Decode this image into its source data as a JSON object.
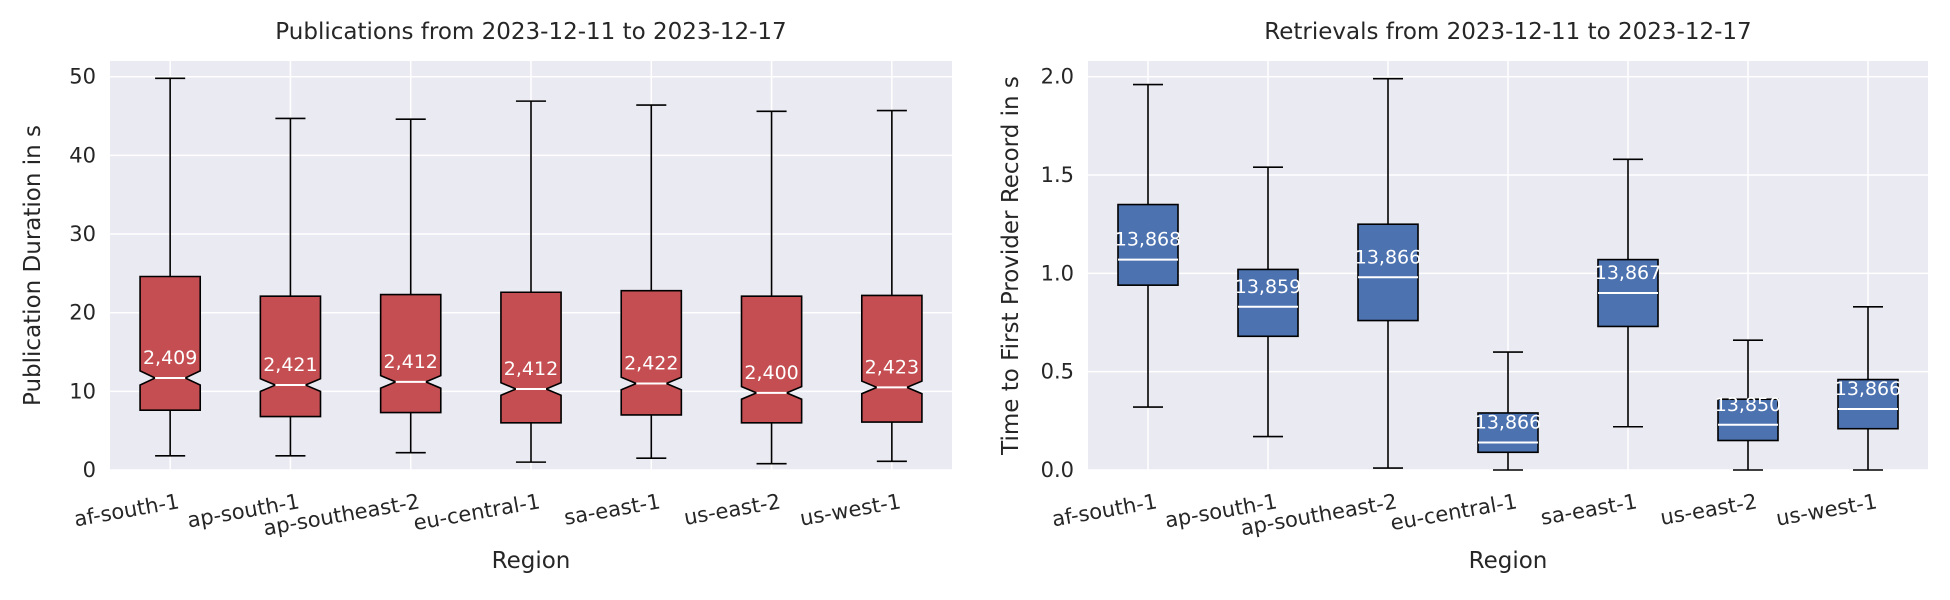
{
  "chart_data": [
    {
      "type": "box",
      "title": "Publications from 2023-12-11 to 2023-12-17",
      "xlabel": "Region",
      "ylabel": "Publication Duration in s",
      "ylim": [
        0,
        52
      ],
      "yticks": [
        0,
        10,
        20,
        30,
        40,
        50
      ],
      "notched": true,
      "grid": true,
      "box_color": "#c44e52",
      "categories": [
        "af-south-1",
        "ap-south-1",
        "ap-southeast-2",
        "eu-central-1",
        "sa-east-1",
        "us-east-2",
        "us-west-1"
      ],
      "boxes": [
        {
          "whislo": 1.8,
          "q1": 7.6,
          "med": 11.7,
          "q3": 24.6,
          "whishi": 49.8,
          "cilo": 10.8,
          "cihi": 12.6,
          "count": "2,409"
        },
        {
          "whislo": 1.8,
          "q1": 6.8,
          "med": 10.8,
          "q3": 22.1,
          "whishi": 44.7,
          "cilo": 10.0,
          "cihi": 11.6,
          "count": "2,421"
        },
        {
          "whislo": 2.2,
          "q1": 7.3,
          "med": 11.2,
          "q3": 22.3,
          "whishi": 44.6,
          "cilo": 10.4,
          "cihi": 12.0,
          "count": "2,412"
        },
        {
          "whislo": 1.0,
          "q1": 6.0,
          "med": 10.3,
          "q3": 22.6,
          "whishi": 46.9,
          "cilo": 9.5,
          "cihi": 11.1,
          "count": "2,412"
        },
        {
          "whislo": 1.5,
          "q1": 7.0,
          "med": 11.0,
          "q3": 22.8,
          "whishi": 46.4,
          "cilo": 10.2,
          "cihi": 11.8,
          "count": "2,422"
        },
        {
          "whislo": 0.8,
          "q1": 6.0,
          "med": 9.8,
          "q3": 22.1,
          "whishi": 45.6,
          "cilo": 9.0,
          "cihi": 10.6,
          "count": "2,400"
        },
        {
          "whislo": 1.1,
          "q1": 6.1,
          "med": 10.5,
          "q3": 22.2,
          "whishi": 45.7,
          "cilo": 9.7,
          "cihi": 11.3,
          "count": "2,423"
        }
      ]
    },
    {
      "type": "box",
      "title": "Retrievals from 2023-12-11 to 2023-12-17",
      "xlabel": "Region",
      "ylabel": "Time to First Provider Record in s",
      "ylim": [
        0,
        2.08
      ],
      "yticks": [
        0.0,
        0.5,
        1.0,
        1.5,
        2.0
      ],
      "notched": false,
      "grid": true,
      "box_color": "#4c72b0",
      "categories": [
        "af-south-1",
        "ap-south-1",
        "ap-southeast-2",
        "eu-central-1",
        "sa-east-1",
        "us-east-2",
        "us-west-1"
      ],
      "boxes": [
        {
          "whislo": 0.32,
          "q1": 0.94,
          "med": 1.07,
          "q3": 1.35,
          "whishi": 1.96,
          "count": "13,868"
        },
        {
          "whislo": 0.17,
          "q1": 0.68,
          "med": 0.83,
          "q3": 1.02,
          "whishi": 1.54,
          "count": "13,859"
        },
        {
          "whislo": 0.01,
          "q1": 0.76,
          "med": 0.98,
          "q3": 1.25,
          "whishi": 1.99,
          "count": "13,866"
        },
        {
          "whislo": 0.0,
          "q1": 0.09,
          "med": 0.14,
          "q3": 0.29,
          "whishi": 0.6,
          "count": "13,866"
        },
        {
          "whislo": 0.22,
          "q1": 0.73,
          "med": 0.9,
          "q3": 1.07,
          "whishi": 1.58,
          "count": "13,867"
        },
        {
          "whislo": 0.0,
          "q1": 0.15,
          "med": 0.23,
          "q3": 0.36,
          "whishi": 0.66,
          "count": "13,850"
        },
        {
          "whislo": 0.0,
          "q1": 0.21,
          "med": 0.31,
          "q3": 0.46,
          "whishi": 0.83,
          "count": "13,866"
        }
      ]
    }
  ]
}
